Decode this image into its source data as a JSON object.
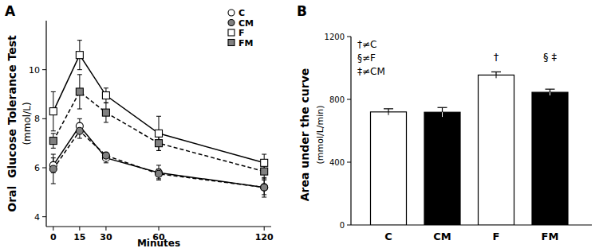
{
  "chart_data": [
    {
      "type": "line",
      "title": "A",
      "xlabel": "Minutes",
      "ylabel": "Oral  Glucose Tolerance Test",
      "ylabel_units": "(mmol/L)",
      "x": [
        0,
        15,
        30,
        60,
        120
      ],
      "xlim": [
        -4,
        124
      ],
      "xticks": [
        0,
        15,
        30,
        60,
        120
      ],
      "ylim": [
        3.6,
        12
      ],
      "yticks": [
        4,
        6,
        8,
        10
      ],
      "grid": false,
      "legend": "upper right",
      "series": [
        {
          "name": "C",
          "color": "#ffffff",
          "marker": "circle",
          "line_style": "solid",
          "values": [
            6.1,
            7.7,
            6.4,
            5.8,
            5.2
          ],
          "errors": [
            0.3,
            0.3,
            0.2,
            0.3,
            0.4
          ]
        },
        {
          "name": "CM",
          "color": "#808080",
          "marker": "circle",
          "line_style": "dashed",
          "values": [
            5.95,
            7.5,
            6.5,
            5.75,
            5.2
          ],
          "errors": [
            0.6,
            0.3,
            0.1,
            0.2,
            0.3
          ]
        },
        {
          "name": "F",
          "color": "#ffffff",
          "marker": "square",
          "line_style": "solid",
          "values": [
            8.3,
            10.6,
            8.95,
            7.4,
            6.2
          ],
          "errors": [
            0.8,
            0.6,
            0.3,
            0.7,
            0.35
          ]
        },
        {
          "name": "FM",
          "color": "#808080",
          "marker": "square",
          "line_style": "dashed",
          "values": [
            7.1,
            9.1,
            8.25,
            7.0,
            5.85
          ],
          "errors": [
            0.3,
            0.7,
            0.4,
            0.3,
            0.3
          ]
        }
      ]
    },
    {
      "type": "bar",
      "title": "B",
      "ylabel": "Area under the curve",
      "ylabel_units": "(mmol/L/min)",
      "categories": [
        "C",
        "CM",
        "F",
        "FM"
      ],
      "values": [
        720,
        718,
        955,
        845
      ],
      "errors": [
        20,
        30,
        20,
        20
      ],
      "colors": [
        "#ffffff",
        "#000000",
        "#ffffff",
        "#000000"
      ],
      "value_notes": [
        null,
        null,
        "†",
        "§ ‡"
      ],
      "annotations": [
        "†≠C",
        "§≠F",
        "‡≠CM"
      ],
      "ylim": [
        0,
        1200
      ],
      "yticks": [
        0,
        400,
        800,
        1200
      ],
      "grid": false
    }
  ]
}
